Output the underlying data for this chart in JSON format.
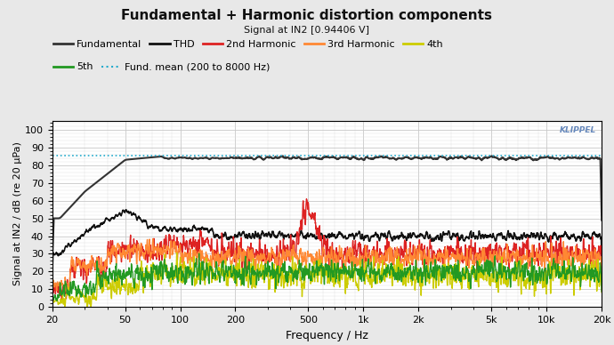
{
  "title": "Fundamental + Harmonic distortion components",
  "subtitle": "Signal at IN2 [0.94406 V]",
  "ylabel": "Signal at IN2 / dB (re 20 μPa)",
  "xlabel": "Frequency / Hz",
  "ylim": [
    0,
    105
  ],
  "yticks": [
    0,
    10,
    20,
    30,
    40,
    50,
    60,
    70,
    80,
    90,
    100
  ],
  "xmin": 20,
  "xmax": 20000,
  "fund_mean_y": 85.2,
  "bg_color": "#e8e8e8",
  "plot_bg": "#ffffff",
  "lines": [
    {
      "label": "Fundamental",
      "color": "#333333",
      "lw": 1.5,
      "ls": "-"
    },
    {
      "label": "THD",
      "color": "#111111",
      "lw": 1.2,
      "ls": "-"
    },
    {
      "label": "2nd Harmonic",
      "color": "#dd2222",
      "lw": 1.0,
      "ls": "-"
    },
    {
      "label": "3rd Harmonic",
      "color": "#ff8833",
      "lw": 1.0,
      "ls": "-"
    },
    {
      "label": "4th",
      "color": "#cccc00",
      "lw": 1.0,
      "ls": "-"
    },
    {
      "label": "5th",
      "color": "#229922",
      "lw": 1.0,
      "ls": "-"
    },
    {
      "label": "Fund. mean (200 to 8000 Hz)",
      "color": "#22aacc",
      "lw": 1.2,
      "ls": ":"
    }
  ],
  "xtick_vals": [
    20,
    50,
    100,
    200,
    500,
    1000,
    2000,
    5000,
    10000,
    20000
  ],
  "xtick_labels": [
    "20",
    "50",
    "100",
    "200",
    "500",
    "1k",
    "2k",
    "5k",
    "10k",
    "20k"
  ],
  "klippel_text": "KLIPPEL",
  "klippel_color": "#6688bb",
  "title_fontsize": 11,
  "subtitle_fontsize": 8,
  "legend_fontsize": 8,
  "axis_fontsize": 8,
  "xlabel_fontsize": 9
}
